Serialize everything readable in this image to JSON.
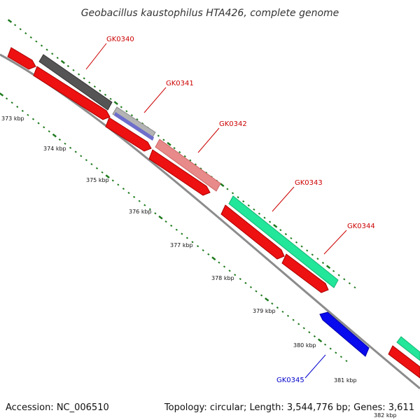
{
  "title": "Geobacillus kaustophilus HTA426, complete genome",
  "footer": {
    "accession": "Accession: NC_006510",
    "summary": "Topology: circular; Length: 3,544,776 bp; Genes: 3,611"
  },
  "colors": {
    "backbone": "#8c8c8c",
    "tick": "#1e7a1e",
    "label_red": "#cc0000",
    "label_blue": "#0000cc"
  },
  "kbp_labels": [
    "373 kbp",
    "374 kbp",
    "375 kbp",
    "376 kbp",
    "377 kbp",
    "378 kbp",
    "379 kbp",
    "380 kbp",
    "381 kbp",
    "382 kbp"
  ],
  "genes": [
    {
      "id": "GK0340",
      "color": "#cc0000"
    },
    {
      "id": "GK0341",
      "color": "#cc0000"
    },
    {
      "id": "GK0342",
      "color": "#cc0000"
    },
    {
      "id": "GK0343",
      "color": "#cc0000"
    },
    {
      "id": "GK0344",
      "color": "#cc0000"
    },
    {
      "id": "GK0345",
      "color": "#0000cc"
    }
  ]
}
